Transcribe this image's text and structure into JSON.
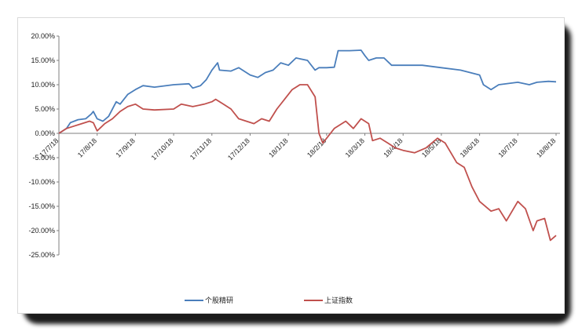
{
  "chart_data": {
    "type": "line",
    "title": "",
    "xlabel": "",
    "ylabel": "",
    "ylim": [
      -0.25,
      0.2
    ],
    "y_tick_labels": [
      "20.00%",
      "15.00%",
      "10.00%",
      "5.00%",
      "0.00%",
      "-5.00%",
      "-10.00%",
      "-15.00%",
      "-20.00%",
      "-25.00%"
    ],
    "x_tick_labels": [
      "17/7/18",
      "17/8/18",
      "17/9/18",
      "17/10/18",
      "17/11/18",
      "17/12/18",
      "18/1/18",
      "18/2/18",
      "18/3/18",
      "18/4/18",
      "18/5/18",
      "18/6/18",
      "18/7/18",
      "18/8/18"
    ],
    "grid": false,
    "legend_position": "bottom",
    "series": [
      {
        "name": "个股精研",
        "color": "#4a7ebb",
        "points": [
          [
            0,
            0.0
          ],
          [
            0.2,
            0.01
          ],
          [
            0.3,
            0.022
          ],
          [
            0.5,
            0.028
          ],
          [
            0.7,
            0.03
          ],
          [
            0.85,
            0.04
          ],
          [
            0.9,
            0.045
          ],
          [
            1.0,
            0.03
          ],
          [
            1.15,
            0.025
          ],
          [
            1.3,
            0.035
          ],
          [
            1.5,
            0.065
          ],
          [
            1.6,
            0.06
          ],
          [
            1.8,
            0.08
          ],
          [
            2.0,
            0.09
          ],
          [
            2.2,
            0.098
          ],
          [
            2.5,
            0.095
          ],
          [
            3.0,
            0.1
          ],
          [
            3.4,
            0.102
          ],
          [
            3.5,
            0.093
          ],
          [
            3.7,
            0.098
          ],
          [
            3.85,
            0.11
          ],
          [
            4.0,
            0.13
          ],
          [
            4.15,
            0.145
          ],
          [
            4.2,
            0.13
          ],
          [
            4.5,
            0.128
          ],
          [
            4.7,
            0.135
          ],
          [
            5.0,
            0.12
          ],
          [
            5.2,
            0.115
          ],
          [
            5.4,
            0.125
          ],
          [
            5.6,
            0.13
          ],
          [
            5.8,
            0.145
          ],
          [
            6.0,
            0.14
          ],
          [
            6.2,
            0.155
          ],
          [
            6.5,
            0.15
          ],
          [
            6.7,
            0.13
          ],
          [
            6.8,
            0.135
          ],
          [
            7.0,
            0.135
          ],
          [
            7.2,
            0.136
          ],
          [
            7.3,
            0.17
          ],
          [
            7.6,
            0.17
          ],
          [
            7.9,
            0.171
          ],
          [
            8.0,
            0.16
          ],
          [
            8.1,
            0.15
          ],
          [
            8.3,
            0.155
          ],
          [
            8.5,
            0.155
          ],
          [
            8.7,
            0.14
          ],
          [
            9.0,
            0.14
          ],
          [
            9.5,
            0.14
          ],
          [
            10.0,
            0.135
          ],
          [
            10.5,
            0.13
          ],
          [
            11.0,
            0.12
          ],
          [
            11.1,
            0.1
          ],
          [
            11.3,
            0.09
          ],
          [
            11.5,
            0.1
          ],
          [
            12.0,
            0.105
          ],
          [
            12.3,
            0.1
          ],
          [
            12.5,
            0.105
          ],
          [
            12.8,
            0.107
          ],
          [
            13.0,
            0.106
          ]
        ]
      },
      {
        "name": "上证指数",
        "color": "#c0504d",
        "points": [
          [
            0,
            0.0
          ],
          [
            0.2,
            0.01
          ],
          [
            0.4,
            0.015
          ],
          [
            0.6,
            0.02
          ],
          [
            0.8,
            0.025
          ],
          [
            0.9,
            0.022
          ],
          [
            1.0,
            0.005
          ],
          [
            1.2,
            0.02
          ],
          [
            1.4,
            0.03
          ],
          [
            1.6,
            0.045
          ],
          [
            1.8,
            0.055
          ],
          [
            2.0,
            0.06
          ],
          [
            2.2,
            0.05
          ],
          [
            2.5,
            0.048
          ],
          [
            3.0,
            0.05
          ],
          [
            3.2,
            0.06
          ],
          [
            3.5,
            0.055
          ],
          [
            3.8,
            0.06
          ],
          [
            4.0,
            0.065
          ],
          [
            4.1,
            0.07
          ],
          [
            4.3,
            0.06
          ],
          [
            4.5,
            0.05
          ],
          [
            4.7,
            0.03
          ],
          [
            4.9,
            0.025
          ],
          [
            5.1,
            0.02
          ],
          [
            5.3,
            0.03
          ],
          [
            5.5,
            0.025
          ],
          [
            5.7,
            0.05
          ],
          [
            5.9,
            0.07
          ],
          [
            6.1,
            0.09
          ],
          [
            6.3,
            0.1
          ],
          [
            6.5,
            0.1
          ],
          [
            6.7,
            0.075
          ],
          [
            6.8,
            0.0
          ],
          [
            6.9,
            -0.02
          ],
          [
            7.2,
            0.01
          ],
          [
            7.5,
            0.025
          ],
          [
            7.7,
            0.01
          ],
          [
            7.9,
            0.03
          ],
          [
            8.1,
            0.02
          ],
          [
            8.2,
            -0.015
          ],
          [
            8.4,
            -0.01
          ],
          [
            8.6,
            -0.02
          ],
          [
            8.8,
            -0.03
          ],
          [
            9.0,
            -0.035
          ],
          [
            9.3,
            -0.04
          ],
          [
            9.6,
            -0.03
          ],
          [
            9.9,
            -0.01
          ],
          [
            10.1,
            -0.02
          ],
          [
            10.4,
            -0.06
          ],
          [
            10.6,
            -0.07
          ],
          [
            10.8,
            -0.11
          ],
          [
            11.0,
            -0.14
          ],
          [
            11.3,
            -0.16
          ],
          [
            11.5,
            -0.155
          ],
          [
            11.7,
            -0.18
          ],
          [
            12.0,
            -0.14
          ],
          [
            12.2,
            -0.155
          ],
          [
            12.4,
            -0.2
          ],
          [
            12.5,
            -0.18
          ],
          [
            12.7,
            -0.175
          ],
          [
            12.85,
            -0.22
          ],
          [
            13.0,
            -0.21
          ]
        ]
      }
    ]
  }
}
